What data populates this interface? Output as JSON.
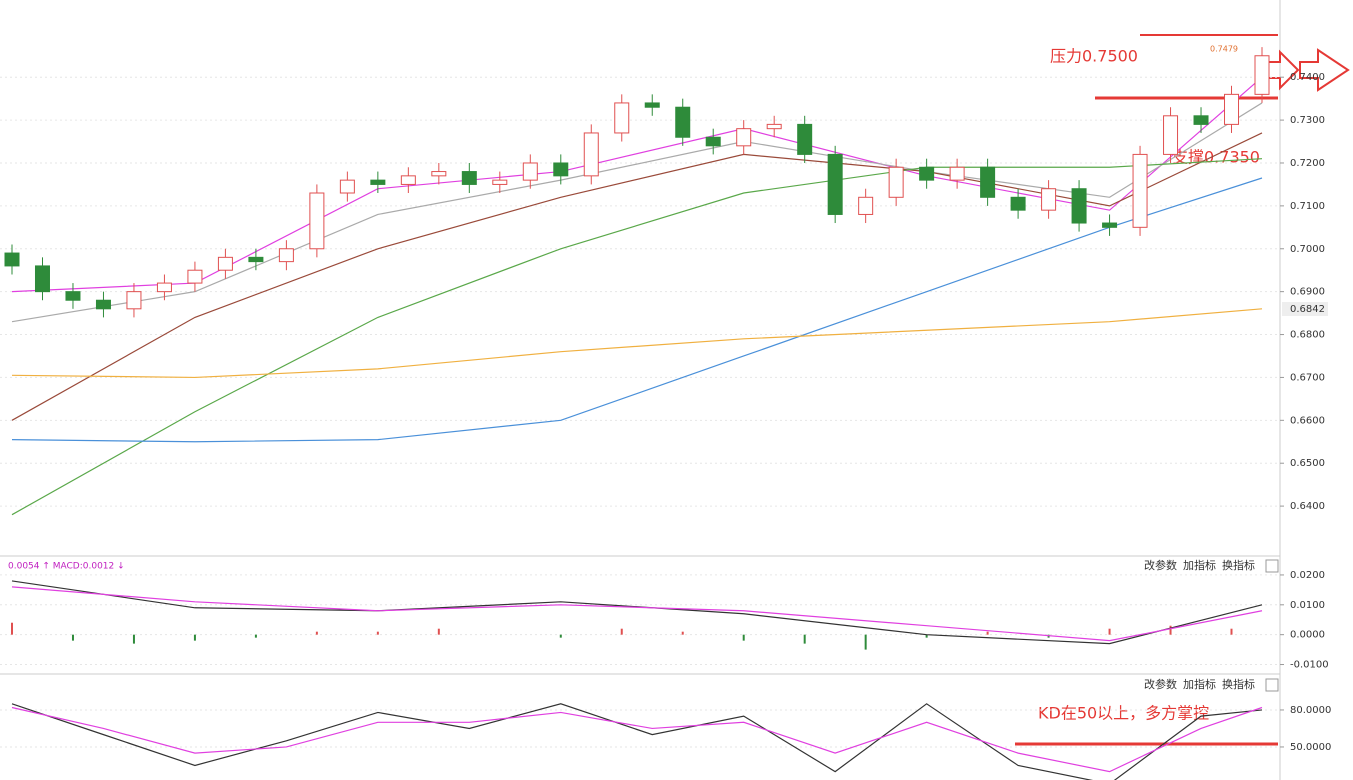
{
  "chart_data": {
    "type": "candlestick",
    "annotations": {
      "resistance": "压力0.7500",
      "support": "支撑0.7350",
      "kd_note": "KD在50以上，多方掌控",
      "high_label": "0.7479",
      "last_price": "0.6842"
    },
    "macd_header": "0.0054 ↑ MACD:0.0012 ↓",
    "buttons": [
      "改参数",
      "加指标",
      "换指标"
    ],
    "open": [
      0.699,
      0.696,
      0.69,
      0.688,
      0.686,
      0.69,
      0.692,
      0.695,
      0.698,
      0.697,
      0.7,
      0.713,
      0.716,
      0.715,
      0.717,
      0.718,
      0.715,
      0.716,
      0.72,
      0.717,
      0.727,
      0.734,
      0.733,
      0.726,
      0.724,
      0.728,
      0.729,
      0.722,
      0.708,
      0.712,
      0.719,
      0.716,
      0.719,
      0.712,
      0.709,
      0.714,
      0.706,
      0.705,
      0.722,
      0.731,
      0.729,
      0.736
    ],
    "high": [
      0.701,
      0.698,
      0.692,
      0.69,
      0.692,
      0.694,
      0.697,
      0.7,
      0.7,
      0.702,
      0.715,
      0.718,
      0.718,
      0.719,
      0.72,
      0.72,
      0.718,
      0.722,
      0.722,
      0.729,
      0.736,
      0.736,
      0.735,
      0.728,
      0.73,
      0.731,
      0.731,
      0.724,
      0.714,
      0.721,
      0.721,
      0.721,
      0.721,
      0.714,
      0.716,
      0.716,
      0.708,
      0.724,
      0.733,
      0.733,
      0.738,
      0.747
    ],
    "low": [
      0.694,
      0.688,
      0.686,
      0.684,
      0.684,
      0.688,
      0.69,
      0.693,
      0.695,
      0.695,
      0.698,
      0.711,
      0.713,
      0.713,
      0.715,
      0.713,
      0.713,
      0.714,
      0.715,
      0.715,
      0.725,
      0.731,
      0.724,
      0.722,
      0.722,
      0.726,
      0.72,
      0.706,
      0.706,
      0.71,
      0.714,
      0.714,
      0.71,
      0.707,
      0.707,
      0.704,
      0.703,
      0.703,
      0.72,
      0.727,
      0.727,
      0.734
    ],
    "close": [
      0.696,
      0.69,
      0.688,
      0.686,
      0.69,
      0.692,
      0.695,
      0.698,
      0.697,
      0.7,
      0.713,
      0.716,
      0.715,
      0.717,
      0.718,
      0.715,
      0.716,
      0.72,
      0.717,
      0.727,
      0.734,
      0.733,
      0.726,
      0.724,
      0.728,
      0.729,
      0.722,
      0.708,
      0.712,
      0.719,
      0.716,
      0.719,
      0.712,
      0.709,
      0.714,
      0.706,
      0.705,
      0.722,
      0.731,
      0.729,
      0.736,
      0.745
    ],
    "up_color": "#e05050",
    "down_color": "#2e8b3a",
    "ylim": [
      0.6286,
      0.758
    ],
    "yticks": [
      {
        "value": 0.64,
        "label": "0.6400"
      },
      {
        "value": 0.65,
        "label": "0.6500"
      },
      {
        "value": 0.66,
        "label": "0.6600"
      },
      {
        "value": 0.67,
        "label": "0.6700"
      },
      {
        "value": 0.68,
        "label": "0.6800"
      },
      {
        "value": 0.69,
        "label": "0.6900"
      },
      {
        "value": 0.7,
        "label": "0.7000"
      },
      {
        "value": 0.71,
        "label": "0.7100"
      },
      {
        "value": 0.72,
        "label": "0.7200"
      },
      {
        "value": 0.73,
        "label": "0.7300"
      },
      {
        "value": 0.74,
        "label": "0.7400"
      }
    ],
    "ma_x": [
      0,
      6,
      12,
      18,
      24,
      30,
      36,
      41
    ],
    "ma_series": [
      {
        "color": "#e040e0",
        "values": [
          0.69,
          0.692,
          0.714,
          0.718,
          0.728,
          0.717,
          0.709,
          0.74
        ]
      },
      {
        "color": "#aaaaaa",
        "values": [
          0.683,
          0.69,
          0.708,
          0.716,
          0.725,
          0.718,
          0.712,
          0.734
        ]
      },
      {
        "color": "#9a4a3a",
        "values": [
          0.66,
          0.684,
          0.7,
          0.712,
          0.722,
          0.718,
          0.71,
          0.727
        ]
      },
      {
        "color": "#5aa84a",
        "values": [
          0.638,
          0.662,
          0.684,
          0.7,
          0.713,
          0.719,
          0.719,
          0.721
        ]
      },
      {
        "color": "#4a90d9",
        "values": [
          0.6555,
          0.655,
          0.6555,
          0.66,
          0.675,
          0.69,
          0.705,
          0.7165
        ]
      },
      {
        "color": "#f0b040",
        "values": [
          0.6705,
          0.67,
          0.672,
          0.676,
          0.679,
          0.681,
          0.683,
          0.686
        ]
      }
    ],
    "macd": {
      "ylim": [
        -0.0125,
        0.025
      ],
      "yticks": [
        {
          "value": 0.02,
          "label": "0.0200"
        },
        {
          "value": 0.01,
          "label": "0.0100"
        },
        {
          "value": 0,
          "label": "0.0000"
        },
        {
          "value": -0.01,
          "label": "-0.0100"
        }
      ],
      "hist_x": [
        0,
        2,
        4,
        6,
        8,
        10,
        12,
        14,
        16,
        18,
        20,
        22,
        24,
        26,
        28,
        30,
        32,
        34,
        36,
        38,
        40
      ],
      "hist": [
        0.004,
        -0.002,
        -0.003,
        -0.002,
        -0.001,
        0.001,
        0.001,
        0.002,
        0.0,
        -0.001,
        0.002,
        0.001,
        -0.002,
        -0.003,
        -0.005,
        -0.001,
        0.001,
        -0.001,
        0.002,
        0.003,
        0.002
      ],
      "dif": {
        "color": "#333333",
        "values": [
          0.018,
          0.009,
          0.008,
          0.011,
          0.007,
          0.0,
          -0.003,
          0.01
        ]
      },
      "dea": {
        "color": "#e040e0",
        "values": [
          0.016,
          0.011,
          0.008,
          0.01,
          0.008,
          0.003,
          -0.002,
          0.008
        ]
      }
    },
    "kd": {
      "ylim": [
        23.2,
        104.3
      ],
      "yticks": [
        {
          "value": 80,
          "label": "80.0000"
        },
        {
          "value": 50,
          "label": "50.0000"
        }
      ],
      "x": [
        0,
        3,
        6,
        9,
        12,
        15,
        18,
        21,
        24,
        27,
        30,
        33,
        36,
        39,
        41
      ],
      "k": {
        "color": "#333333",
        "values": [
          85,
          60,
          35,
          55,
          78,
          65,
          85,
          60,
          75,
          30,
          85,
          35,
          20,
          75,
          80
        ]
      },
      "d": {
        "color": "#e040e0",
        "values": [
          82,
          65,
          45,
          50,
          70,
          70,
          78,
          65,
          70,
          45,
          70,
          45,
          30,
          65,
          82
        ]
      }
    }
  }
}
